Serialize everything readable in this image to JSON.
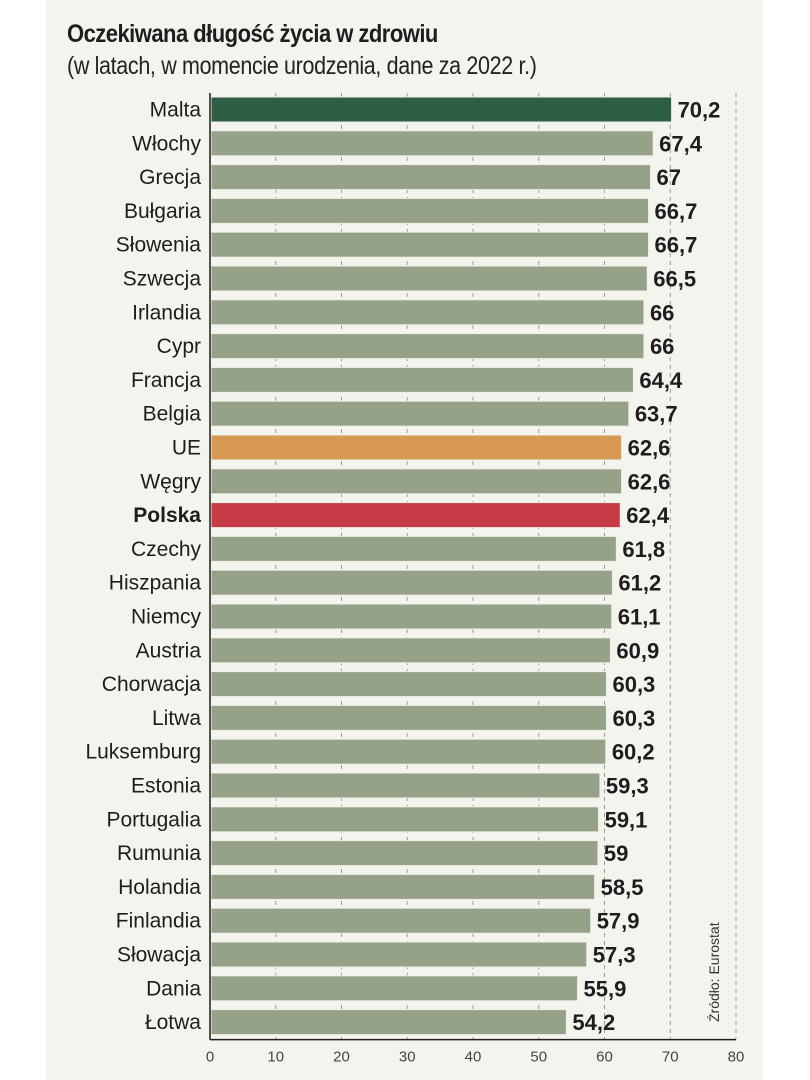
{
  "chart_data": {
    "type": "bar",
    "orientation": "horizontal",
    "title": "Oczekiwana długość życia w zdrowiu",
    "subtitle": "(w latach, w momencie urodzenia, dane za 2022 r.)",
    "xlabel": "",
    "ylabel": "",
    "xlim": [
      0,
      80
    ],
    "xticks": [
      0,
      10,
      20,
      30,
      40,
      50,
      60,
      70,
      80
    ],
    "grid": "vertical dashed",
    "source": "Źródło: Eurostat",
    "categories": [
      "Malta",
      "Włochy",
      "Grecja",
      "Bułgaria",
      "Słowenia",
      "Szwecja",
      "Irlandia",
      "Cypr",
      "Francja",
      "Belgia",
      "UE",
      "Węgry",
      "Polska",
      "Czechy",
      "Hiszpania",
      "Niemcy",
      "Austria",
      "Chorwacja",
      "Litwa",
      "Luksemburg",
      "Estonia",
      "Portugalia",
      "Rumunia",
      "Holandia",
      "Finlandia",
      "Słowacja",
      "Dania",
      "Łotwa"
    ],
    "values": [
      70.2,
      67.4,
      67,
      66.7,
      66.7,
      66.5,
      66,
      66,
      64.4,
      63.7,
      62.6,
      62.6,
      62.4,
      61.8,
      61.2,
      61.1,
      60.9,
      60.3,
      60.3,
      60.2,
      59.3,
      59.1,
      59,
      58.5,
      57.9,
      57.3,
      55.9,
      54.2
    ],
    "value_labels": [
      "70,2",
      "67,4",
      "67",
      "66,7",
      "66,7",
      "66,5",
      "66",
      "66",
      "64,4",
      "63,7",
      "62,6",
      "62,6",
      "62,4",
      "61,8",
      "61,2",
      "61,1",
      "60,9",
      "60,3",
      "60,3",
      "60,2",
      "59,3",
      "59,1",
      "59",
      "58,5",
      "57,9",
      "57,3",
      "55,9",
      "54,2"
    ],
    "highlights": {
      "Malta": "#2e5e45",
      "UE": "#d89a52",
      "Polska": "#c63b45"
    },
    "bold_categories": [
      "Polska"
    ],
    "colors": {
      "default_bar": "#96a287",
      "text": "#1d1d1d",
      "background": "#f4f4ef"
    }
  }
}
